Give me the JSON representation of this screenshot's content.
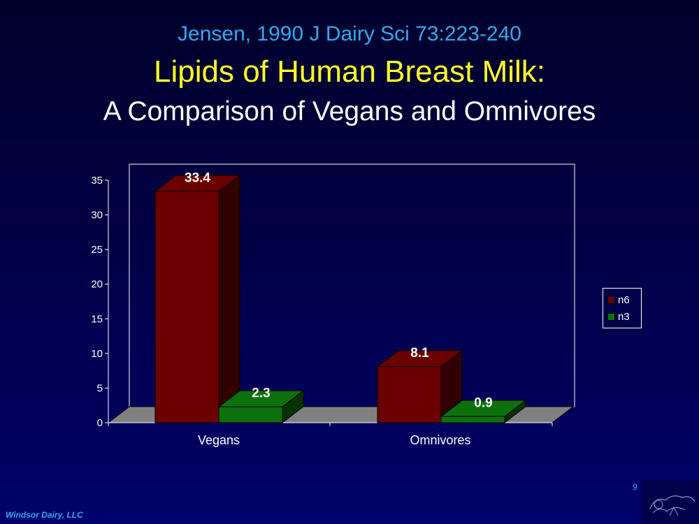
{
  "header": {
    "citation": "Jensen, 1990 J Dairy Sci 73:223-240",
    "title": "Lipids of Human Breast Milk:",
    "subtitle": "A Comparison of Vegans and Omnivores"
  },
  "chart_data": {
    "type": "bar",
    "categories": [
      "Vegans",
      "Omnivores"
    ],
    "series": [
      {
        "name": "n6",
        "values": [
          33.4,
          8.1
        ],
        "color": "#6a0000"
      },
      {
        "name": "n3",
        "values": [
          2.3,
          0.9
        ],
        "color": "#0c700c"
      }
    ],
    "data_labels": [
      [
        "33.4",
        "8.1"
      ],
      [
        "2.3",
        "0.9"
      ]
    ],
    "ylim": [
      0,
      35
    ],
    "yticks": [
      "0",
      "5",
      "10",
      "15",
      "20",
      "25",
      "30",
      "35"
    ],
    "legend_position": "right",
    "grid": false,
    "three_d": true
  },
  "footer": {
    "company": "Windsor Dairy, LLC",
    "page_number": "9"
  },
  "colors": {
    "floor": "#808080",
    "plot_border": "#ffffff",
    "background": "#000044"
  }
}
